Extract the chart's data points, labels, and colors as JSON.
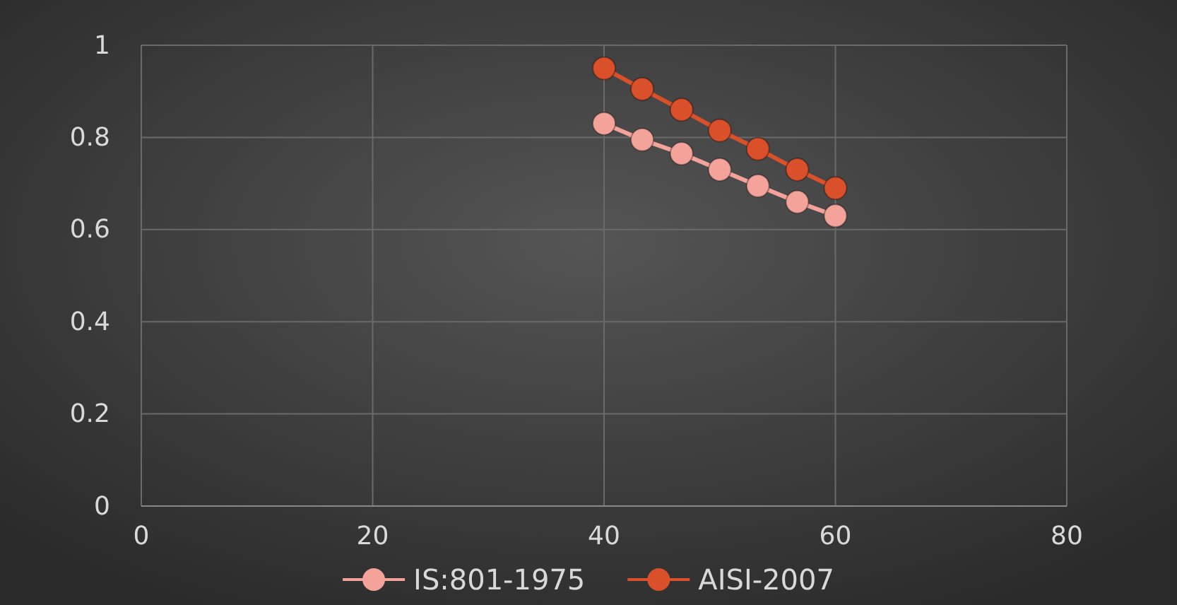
{
  "chart_data": {
    "type": "line",
    "x": [
      40,
      43.3,
      46.7,
      50,
      53.3,
      56.7,
      60
    ],
    "xlim": [
      0,
      80
    ],
    "xticks": [
      0,
      20,
      40,
      60,
      80
    ],
    "ylim": [
      0,
      1
    ],
    "yticks": [
      0,
      0.2,
      0.4,
      0.6,
      0.8,
      1
    ],
    "grid": true,
    "legend": "bottom",
    "marker": "circle",
    "line_style": "solid",
    "series": [
      {
        "name": "IS:801-1975",
        "color": "#f4a39a",
        "values": [
          0.83,
          0.795,
          0.765,
          0.73,
          0.695,
          0.66,
          0.63
        ]
      },
      {
        "name": "AISI-2007",
        "color": "#d9502a",
        "values": [
          0.95,
          0.905,
          0.86,
          0.815,
          0.775,
          0.73,
          0.69
        ]
      }
    ]
  }
}
